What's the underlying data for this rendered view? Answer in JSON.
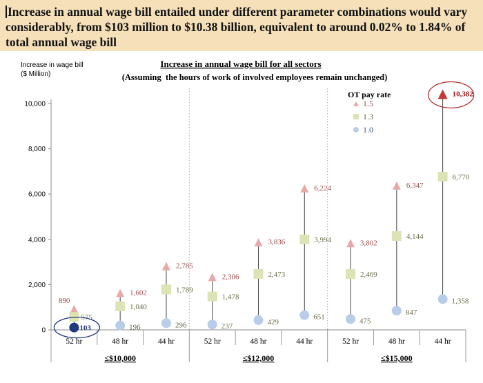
{
  "header": {
    "text": "Increase in annual wage bill entailed under different parameter combinations would vary considerably, from $103 million to $10.38 billion, equivalent to around 0.02% to 1.84% of total annual wage bill"
  },
  "chart_data": {
    "type": "scatter",
    "title": "Increase in annual wage bill for all sectors",
    "subtitle": "(Assuming  the hours of work of involved employees remain unchanged)",
    "ylabel_lines": [
      "Increase in wage  bill",
      "($ Million)"
    ],
    "ylim": [
      0,
      10800
    ],
    "yticks": [
      0,
      2000,
      4000,
      6000,
      8000,
      10000
    ],
    "ytick_labels": [
      "0",
      "2,000",
      "4,000",
      "6,000",
      "8,000",
      "10,000"
    ],
    "grid": false,
    "categories": [
      "52 hr",
      "48 hr",
      "44 hr",
      "52 hr",
      "48 hr",
      "44 hr",
      "52 hr",
      "48 hr",
      "44 hr"
    ],
    "groups": [
      {
        "label": "≤$10,000",
        "categories": [
          "52 hr",
          "48 hr",
          "44 hr"
        ]
      },
      {
        "label": "≤$12,000",
        "categories": [
          "52 hr",
          "48 hr",
          "44 hr"
        ]
      },
      {
        "label": "≤$15,000",
        "categories": [
          "52 hr",
          "48 hr",
          "44 hr"
        ]
      }
    ],
    "legend": {
      "title": "OT pay rate",
      "position": "top-right"
    },
    "series": [
      {
        "name": "1.5",
        "marker": "triangle",
        "color": "#e8a9a9",
        "values": [
          890,
          1602,
          2785,
          2306,
          3836,
          6224,
          3802,
          6347,
          10382
        ],
        "labels": [
          "890",
          "1,602",
          "2,785",
          "2,306",
          "3,836",
          "6,224",
          "3,802",
          "6,347",
          "10,382"
        ]
      },
      {
        "name": "1.3",
        "marker": "square",
        "color": "#dde3b5",
        "values": [
          575,
          1040,
          1789,
          1478,
          2473,
          3994,
          2469,
          4144,
          6770
        ],
        "labels": [
          "575",
          "1,040",
          "1,789",
          "1,478",
          "2,473",
          "3,994",
          "2,469",
          "4,144",
          "6,770"
        ]
      },
      {
        "name": "1.0",
        "marker": "circle",
        "color": "#b9cce8",
        "values": [
          103,
          196,
          296,
          237,
          429,
          651,
          475,
          847,
          1358
        ],
        "labels": [
          "103",
          "196",
          "296",
          "237",
          "429",
          "651",
          "475",
          "847",
          "1,358"
        ]
      }
    ],
    "highlights": [
      {
        "series": "1.0",
        "index": 0,
        "marker_color": "#1f3a7a",
        "label_color": "#1f3a7a",
        "ring_color": "#1f3a7a"
      },
      {
        "series": "1.5",
        "index": 8,
        "marker_color": "#c0393b",
        "label_color": "#9b1b1b",
        "ring_color": "#b72e2e"
      }
    ],
    "label_color": "#9b4a4a",
    "label_color_dark": "#6b6b3a"
  }
}
